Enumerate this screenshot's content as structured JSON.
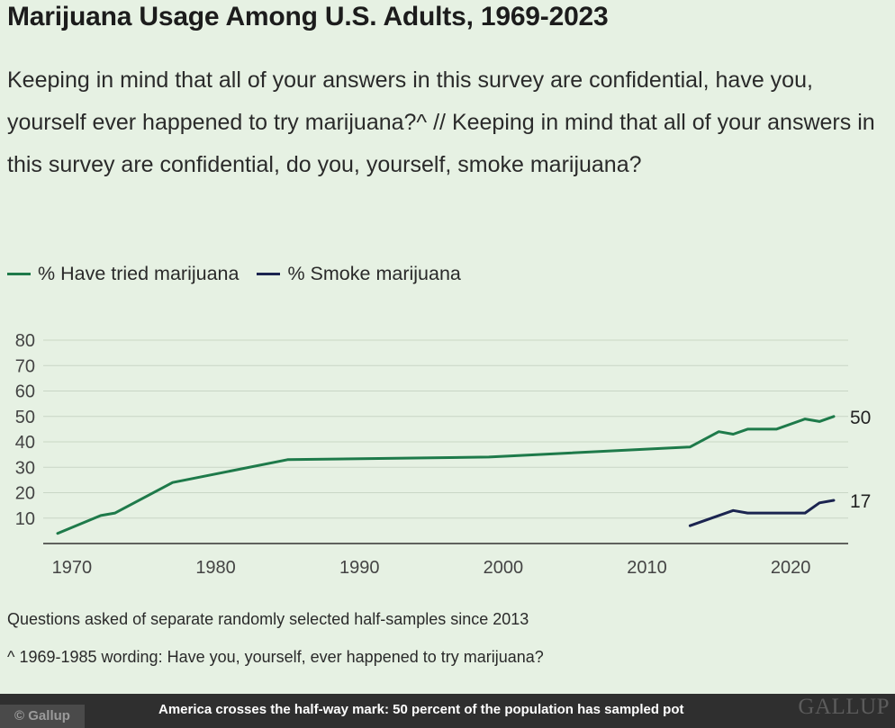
{
  "header": {
    "title": "Marijuana Usage Among U.S. Adults, 1969-2023",
    "subtitle": "Keeping in mind that all of your answers in this survey are confidential, have you, yourself ever happened to try marijuana?^ // Keeping in mind that all of your answers in this survey are confidential, do you, yourself, smoke marijuana?"
  },
  "legend": {
    "tried_label": "% Have tried marijuana",
    "smoke_label": "% Smoke marijuana"
  },
  "notes": {
    "note1": "Questions asked of separate randomly selected half-samples since 2013",
    "note2": "^ 1969-1985 wording: Have you, yourself, ever happened to try marijuana?"
  },
  "footer": {
    "credit": "© Gallup",
    "caption": "America crosses the half-way mark: 50 percent of the population has sampled pot",
    "brand": "GALLUP"
  },
  "colors": {
    "tried": "#1e7a4a",
    "smoke": "#1b2450",
    "grid": "#c9d6c6",
    "axis": "#333333",
    "tick_text": "#444444"
  },
  "chart_data": {
    "type": "line",
    "title": "Marijuana Usage Among U.S. Adults, 1969-2023",
    "xlabel": "",
    "ylabel": "",
    "xlim": [
      1968,
      2024
    ],
    "ylim": [
      0,
      80
    ],
    "x_ticks": [
      1970,
      1980,
      1990,
      2000,
      2010,
      2020
    ],
    "y_ticks": [
      10,
      20,
      30,
      40,
      50,
      60,
      70,
      80
    ],
    "grid": true,
    "legend_position": "top-left",
    "series": [
      {
        "name": "% Have tried marijuana",
        "color": "#1e7a4a",
        "end_label": "50",
        "points": [
          [
            1969,
            4
          ],
          [
            1972,
            11
          ],
          [
            1973,
            12
          ],
          [
            1977,
            24
          ],
          [
            1985,
            33
          ],
          [
            1999,
            34
          ],
          [
            2013,
            38
          ],
          [
            2015,
            44
          ],
          [
            2016,
            43
          ],
          [
            2017,
            45
          ],
          [
            2019,
            45
          ],
          [
            2021,
            49
          ],
          [
            2022,
            48
          ],
          [
            2023,
            50
          ]
        ]
      },
      {
        "name": "% Smoke marijuana",
        "color": "#1b2450",
        "end_label": "17",
        "points": [
          [
            2013,
            7
          ],
          [
            2015,
            11
          ],
          [
            2016,
            13
          ],
          [
            2017,
            12
          ],
          [
            2018,
            12
          ],
          [
            2019,
            12
          ],
          [
            2021,
            12
          ],
          [
            2022,
            16
          ],
          [
            2023,
            17
          ]
        ]
      }
    ]
  }
}
